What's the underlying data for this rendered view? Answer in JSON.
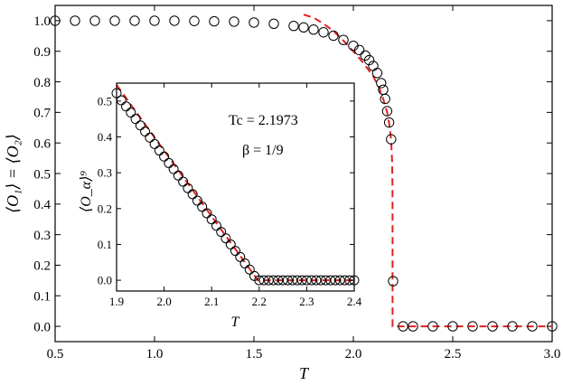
{
  "chart_data": [
    {
      "id": "main",
      "type": "scatter",
      "xlabel": "T",
      "ylabel": "⟨O₁⟩ = ⟨O₂⟩",
      "xlim": [
        0.5,
        3.0
      ],
      "ylim": [
        -0.05,
        1.05
      ],
      "xticks": [
        "0.5",
        "1.0",
        "1.5",
        "2.0",
        "2.5",
        "3.0"
      ],
      "yticks": [
        "0.0",
        "0.1",
        "0.2",
        "0.3",
        "0.4",
        "0.5",
        "0.6",
        "0.7",
        "0.8",
        "0.9",
        "1.0"
      ],
      "grid": false,
      "series": [
        {
          "marker": "circle-open",
          "color": "#000000",
          "x": [
            0.5,
            0.6,
            0.7,
            0.8,
            0.9,
            1.0,
            1.1,
            1.2,
            1.3,
            1.4,
            1.5,
            1.6,
            1.7,
            1.75,
            1.8,
            1.85,
            1.9,
            1.95,
            2.0,
            2.03,
            2.06,
            2.08,
            2.1,
            2.12,
            2.14,
            2.15,
            2.16,
            2.17,
            2.18,
            2.19,
            2.2,
            2.25,
            2.3,
            2.4,
            2.5,
            2.6,
            2.7,
            2.8,
            2.9,
            3.0
          ],
          "y": [
            1.0,
            1.0,
            1.0,
            1.0,
            1.0,
            1.0,
            1.0,
            0.999,
            0.998,
            0.997,
            0.994,
            0.99,
            0.983,
            0.978,
            0.971,
            0.962,
            0.951,
            0.937,
            0.918,
            0.904,
            0.886,
            0.871,
            0.852,
            0.829,
            0.796,
            0.774,
            0.744,
            0.704,
            0.667,
            0.612,
            0.148,
            0.0,
            0.0,
            0.0,
            0.0,
            0.0,
            0.0,
            0.0,
            0.0,
            0.0
          ]
        },
        {
          "marker": "line-dashed",
          "color": "#e02020",
          "x": [
            1.75,
            1.8,
            1.85,
            1.9,
            1.95,
            2.0,
            2.05,
            2.1,
            2.13,
            2.15,
            2.17,
            2.18,
            2.19,
            2.195,
            2.197,
            2.1973,
            2.1973,
            2.25,
            2.5,
            3.0
          ],
          "y": [
            1.02,
            1.01,
            0.99,
            0.966,
            0.935,
            0.9,
            0.862,
            0.818,
            0.78,
            0.745,
            0.7,
            0.665,
            0.61,
            0.54,
            0.45,
            0.3,
            0.0,
            0.0,
            0.0,
            0.0
          ]
        }
      ]
    },
    {
      "id": "inset",
      "type": "scatter",
      "xlabel": "T",
      "ylabel": "⟨O_α⟩⁹",
      "xlim": [
        1.9,
        2.4
      ],
      "ylim": [
        -0.03,
        0.55
      ],
      "xticks": [
        "1.9",
        "2.0",
        "2.1",
        "2.2",
        "2.3",
        "2.4"
      ],
      "yticks": [
        "0.0",
        "0.1",
        "0.2",
        "0.3",
        "0.4",
        "0.5"
      ],
      "grid": false,
      "annotations": [
        "Tc = 2.1973",
        "β = 1/9"
      ],
      "series": [
        {
          "marker": "circle-open",
          "color": "#000000",
          "x": [
            1.9,
            1.91,
            1.92,
            1.93,
            1.94,
            1.95,
            1.96,
            1.97,
            1.98,
            1.99,
            2.0,
            2.01,
            2.02,
            2.03,
            2.04,
            2.05,
            2.06,
            2.07,
            2.08,
            2.09,
            2.1,
            2.11,
            2.12,
            2.13,
            2.14,
            2.15,
            2.16,
            2.17,
            2.18,
            2.19,
            2.2,
            2.21,
            2.22,
            2.23,
            2.24,
            2.25,
            2.26,
            2.27,
            2.28,
            2.29,
            2.3,
            2.31,
            2.32,
            2.33,
            2.34,
            2.35,
            2.36,
            2.37,
            2.38,
            2.39,
            2.4
          ],
          "y": [
            0.522,
            0.502,
            0.485,
            0.468,
            0.45,
            0.432,
            0.415,
            0.398,
            0.38,
            0.362,
            0.345,
            0.327,
            0.31,
            0.292,
            0.275,
            0.257,
            0.24,
            0.222,
            0.205,
            0.187,
            0.17,
            0.152,
            0.135,
            0.117,
            0.1,
            0.082,
            0.065,
            0.047,
            0.03,
            0.012,
            0.0,
            0.0,
            0.0,
            0.0,
            0.0,
            0.0,
            0.0,
            0.0,
            0.0,
            0.0,
            0.0,
            0.0,
            0.0,
            0.0,
            0.0,
            0.0,
            0.0,
            0.0,
            0.0,
            0.0,
            0.0
          ]
        },
        {
          "marker": "line-dashed",
          "color": "#e02020",
          "x": [
            1.9,
            2.1973,
            2.4
          ],
          "y": [
            0.545,
            0.0,
            0.0
          ]
        }
      ]
    }
  ]
}
